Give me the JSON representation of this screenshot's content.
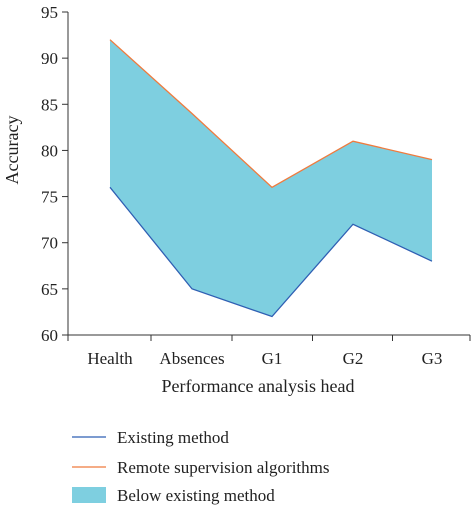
{
  "chart_data": {
    "type": "area",
    "categories": [
      "Health",
      "Absences",
      "G1",
      "G2",
      "G3"
    ],
    "series": [
      {
        "name": "Existing method",
        "values": [
          76,
          65,
          62,
          72,
          68
        ],
        "color": "#2f5fb3",
        "kind": "line"
      },
      {
        "name": "Remote supervision algorithms",
        "values": [
          92,
          84,
          76,
          81,
          79
        ],
        "color": "#ef7b3e",
        "kind": "line"
      }
    ],
    "band": {
      "name": "Below existing method",
      "color": "#7ecfe0"
    },
    "xlabel": "Performance analysis head",
    "ylabel": "Accuracy",
    "ylim": [
      60,
      95
    ],
    "yticks": [
      60,
      65,
      70,
      75,
      80,
      85,
      90,
      95
    ],
    "grid": false,
    "legend_position": "bottom"
  }
}
